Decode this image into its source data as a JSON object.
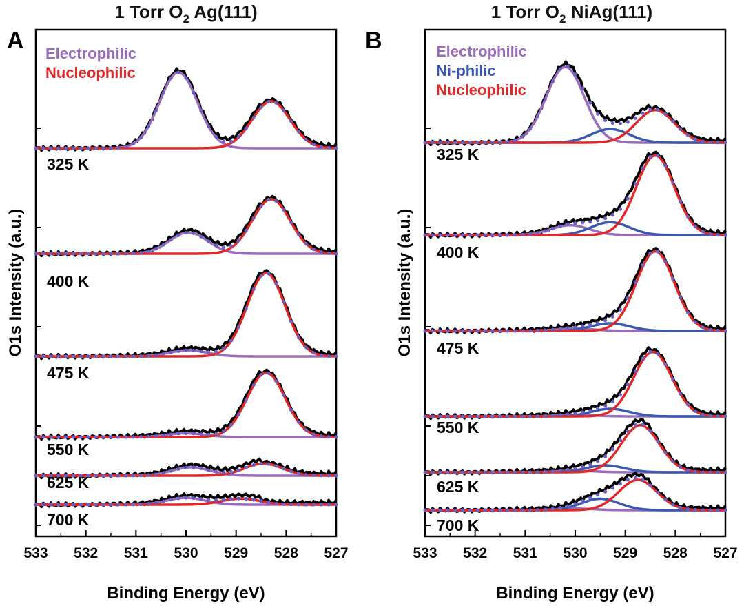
{
  "chart_data": [
    {
      "type": "line",
      "panel": "A",
      "title_parts": {
        "prefix": "1 Torr O",
        "subscript": "2",
        "suffix": " Ag(111)"
      },
      "xlabel": "Binding Energy (eV)",
      "ylabel": "O1s Intensity (a.u.)",
      "xlim": [
        533,
        527
      ],
      "xticks": [
        533,
        532,
        531,
        530,
        529,
        528,
        527
      ],
      "y_ticks_labeled": false,
      "legend": [
        {
          "name": "Electrophilic",
          "color": "#9b6bbd"
        },
        {
          "name": "Nucleophilic",
          "color": "#e02828"
        }
      ],
      "spectra": [
        {
          "label": "325 K",
          "components": [
            {
              "name": "Electrophilic",
              "center": 530.15,
              "amp": 1.0
            },
            {
              "name": "Nucleophilic",
              "center": 528.3,
              "amp": 0.62
            }
          ]
        },
        {
          "label": "400 K",
          "components": [
            {
              "name": "Electrophilic",
              "center": 529.95,
              "amp": 0.28
            },
            {
              "name": "Nucleophilic",
              "center": 528.3,
              "amp": 0.72
            }
          ]
        },
        {
          "label": "475 K",
          "components": [
            {
              "name": "Electrophilic",
              "center": 529.95,
              "amp": 0.08
            },
            {
              "name": "Nucleophilic",
              "center": 528.4,
              "amp": 1.1
            }
          ]
        },
        {
          "label": "550 K",
          "components": [
            {
              "name": "Electrophilic",
              "center": 530.0,
              "amp": 0.05
            },
            {
              "name": "Nucleophilic",
              "center": 528.4,
              "amp": 0.85
            }
          ]
        },
        {
          "label": "625 K",
          "components": [
            {
              "name": "Electrophilic",
              "center": 529.9,
              "amp": 0.11
            },
            {
              "name": "Nucleophilic",
              "center": 528.45,
              "amp": 0.16
            }
          ]
        },
        {
          "label": "700 K",
          "components": [
            {
              "name": "Electrophilic",
              "center": 530.0,
              "amp": 0.09
            },
            {
              "name": "Nucleophilic",
              "center": 528.9,
              "amp": 0.08
            }
          ]
        }
      ]
    },
    {
      "type": "line",
      "panel": "B",
      "title_parts": {
        "prefix": "1 Torr O",
        "subscript": "2",
        "suffix": " NiAg(111)"
      },
      "xlabel": "Binding Energy (eV)",
      "ylabel": "O1s Intensity (a.u.)",
      "xlim": [
        533,
        527
      ],
      "xticks": [
        533,
        532,
        531,
        530,
        529,
        528,
        527
      ],
      "y_ticks_labeled": false,
      "legend": [
        {
          "name": "Electrophilic",
          "color": "#9b6bbd"
        },
        {
          "name": "Ni-philic",
          "color": "#3a5ab0"
        },
        {
          "name": "Nucleophilic",
          "color": "#e02828"
        }
      ],
      "spectra": [
        {
          "label": "325 K",
          "components": [
            {
              "name": "Electrophilic",
              "center": 530.2,
              "amp": 1.0
            },
            {
              "name": "Ni-philic",
              "center": 529.3,
              "amp": 0.18
            },
            {
              "name": "Nucleophilic",
              "center": 528.4,
              "amp": 0.43
            }
          ]
        },
        {
          "label": "400 K",
          "components": [
            {
              "name": "Electrophilic",
              "center": 530.1,
              "amp": 0.13
            },
            {
              "name": "Ni-philic",
              "center": 529.3,
              "amp": 0.17
            },
            {
              "name": "Nucleophilic",
              "center": 528.4,
              "amp": 1.05
            }
          ]
        },
        {
          "label": "475 K",
          "components": [
            {
              "name": "Electrophilic",
              "center": 530.0,
              "amp": 0.03
            },
            {
              "name": "Ni-philic",
              "center": 529.3,
              "amp": 0.1
            },
            {
              "name": "Nucleophilic",
              "center": 528.4,
              "amp": 1.05
            }
          ]
        },
        {
          "label": "550 K",
          "components": [
            {
              "name": "Electrophilic",
              "center": 530.0,
              "amp": 0.02
            },
            {
              "name": "Ni-philic",
              "center": 529.3,
              "amp": 0.1
            },
            {
              "name": "Nucleophilic",
              "center": 528.45,
              "amp": 0.85
            }
          ]
        },
        {
          "label": "625 K",
          "components": [
            {
              "name": "Electrophilic",
              "center": 530.0,
              "amp": 0.02
            },
            {
              "name": "Ni-philic",
              "center": 529.4,
              "amp": 0.09
            },
            {
              "name": "Nucleophilic",
              "center": 528.7,
              "amp": 0.62
            }
          ]
        },
        {
          "label": "700 K",
          "components": [
            {
              "name": "Electrophilic",
              "center": 530.0,
              "amp": 0.02
            },
            {
              "name": "Ni-philic",
              "center": 529.5,
              "amp": 0.15
            },
            {
              "name": "Nucleophilic",
              "center": 528.75,
              "amp": 0.4
            }
          ]
        }
      ]
    }
  ]
}
